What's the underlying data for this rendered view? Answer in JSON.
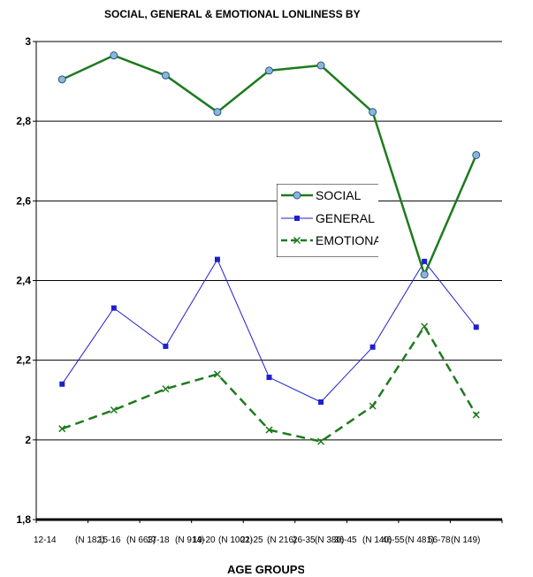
{
  "chart_data": {
    "type": "line",
    "title": "SOCIAL, GENERAL & EMOTIONAL LONLINESS BY",
    "xlabel": "AGE GROUPS",
    "ylabel": "",
    "ylim": [
      1.8,
      3.0
    ],
    "yticks": [
      "1,8",
      "2",
      "2,2",
      "2,4",
      "2,6",
      "2,8",
      "3"
    ],
    "ytick_values": [
      1.8,
      2.0,
      2.2,
      2.4,
      2.6,
      2.8,
      3.0
    ],
    "categories": [
      "12-14",
      "15-16",
      "17-18",
      "19-20",
      "21-25",
      "26-35",
      "36-45",
      "46-55",
      "56-78"
    ],
    "xtick_labels": [
      "12-14",
      "(N 182)",
      "15-16",
      "(N 663)",
      "17-18",
      "(N 914)",
      "19-20",
      "(N 1002)",
      "21-25",
      "(N 216)",
      "26-35",
      "(N 380)",
      "36-45",
      "(N 140)",
      "46-55",
      "(N 481)",
      "56-78",
      "(N 149)"
    ],
    "grid": true,
    "legend_position": "right-center",
    "series": [
      {
        "name": "SOCIAL",
        "color": "#1e7a1e",
        "marker": "circle",
        "values": [
          2.905,
          2.965,
          2.915,
          2.823,
          2.927,
          2.94,
          2.823,
          2.415,
          2.715
        ]
      },
      {
        "name": "GENERAL",
        "color": "#1f1fd0",
        "marker": "square",
        "values": [
          2.14,
          2.331,
          2.235,
          2.453,
          2.157,
          2.095,
          2.233,
          2.448,
          2.283
        ]
      },
      {
        "name": "EMOTIONAL",
        "color": "#1e7a1e",
        "marker": "x",
        "values": [
          2.028,
          2.075,
          2.128,
          2.165,
          2.025,
          1.996,
          2.085,
          2.285,
          2.063
        ]
      }
    ]
  }
}
